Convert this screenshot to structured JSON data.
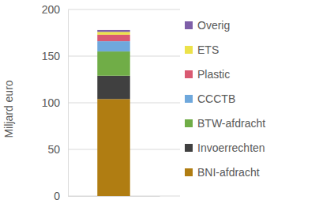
{
  "chart_data": {
    "type": "bar",
    "stacked": true,
    "y_label": "Miljard euro",
    "categories": [
      null
    ],
    "series": [
      {
        "name": "BNI-afdracht",
        "color": "#b07d12",
        "values": [
          104
        ]
      },
      {
        "name": "Invoerrechten",
        "color": "#404040",
        "values": [
          25
        ]
      },
      {
        "name": "BTW-afdracht",
        "color": "#70ad47",
        "values": [
          26
        ]
      },
      {
        "name": "CCCTB",
        "color": "#6fa8dc",
        "values": [
          11
        ]
      },
      {
        "name": "Plastic",
        "color": "#d95a72",
        "values": [
          7
        ]
      },
      {
        "name": "ETS",
        "color": "#ece24a",
        "values": [
          3
        ]
      },
      {
        "name": "Overig",
        "color": "#7e5fa8",
        "values": [
          2
        ]
      }
    ],
    "ylim": [
      0,
      200
    ],
    "yticks": [
      0,
      50,
      100,
      150,
      200
    ],
    "grid": true,
    "legend": "right"
  }
}
